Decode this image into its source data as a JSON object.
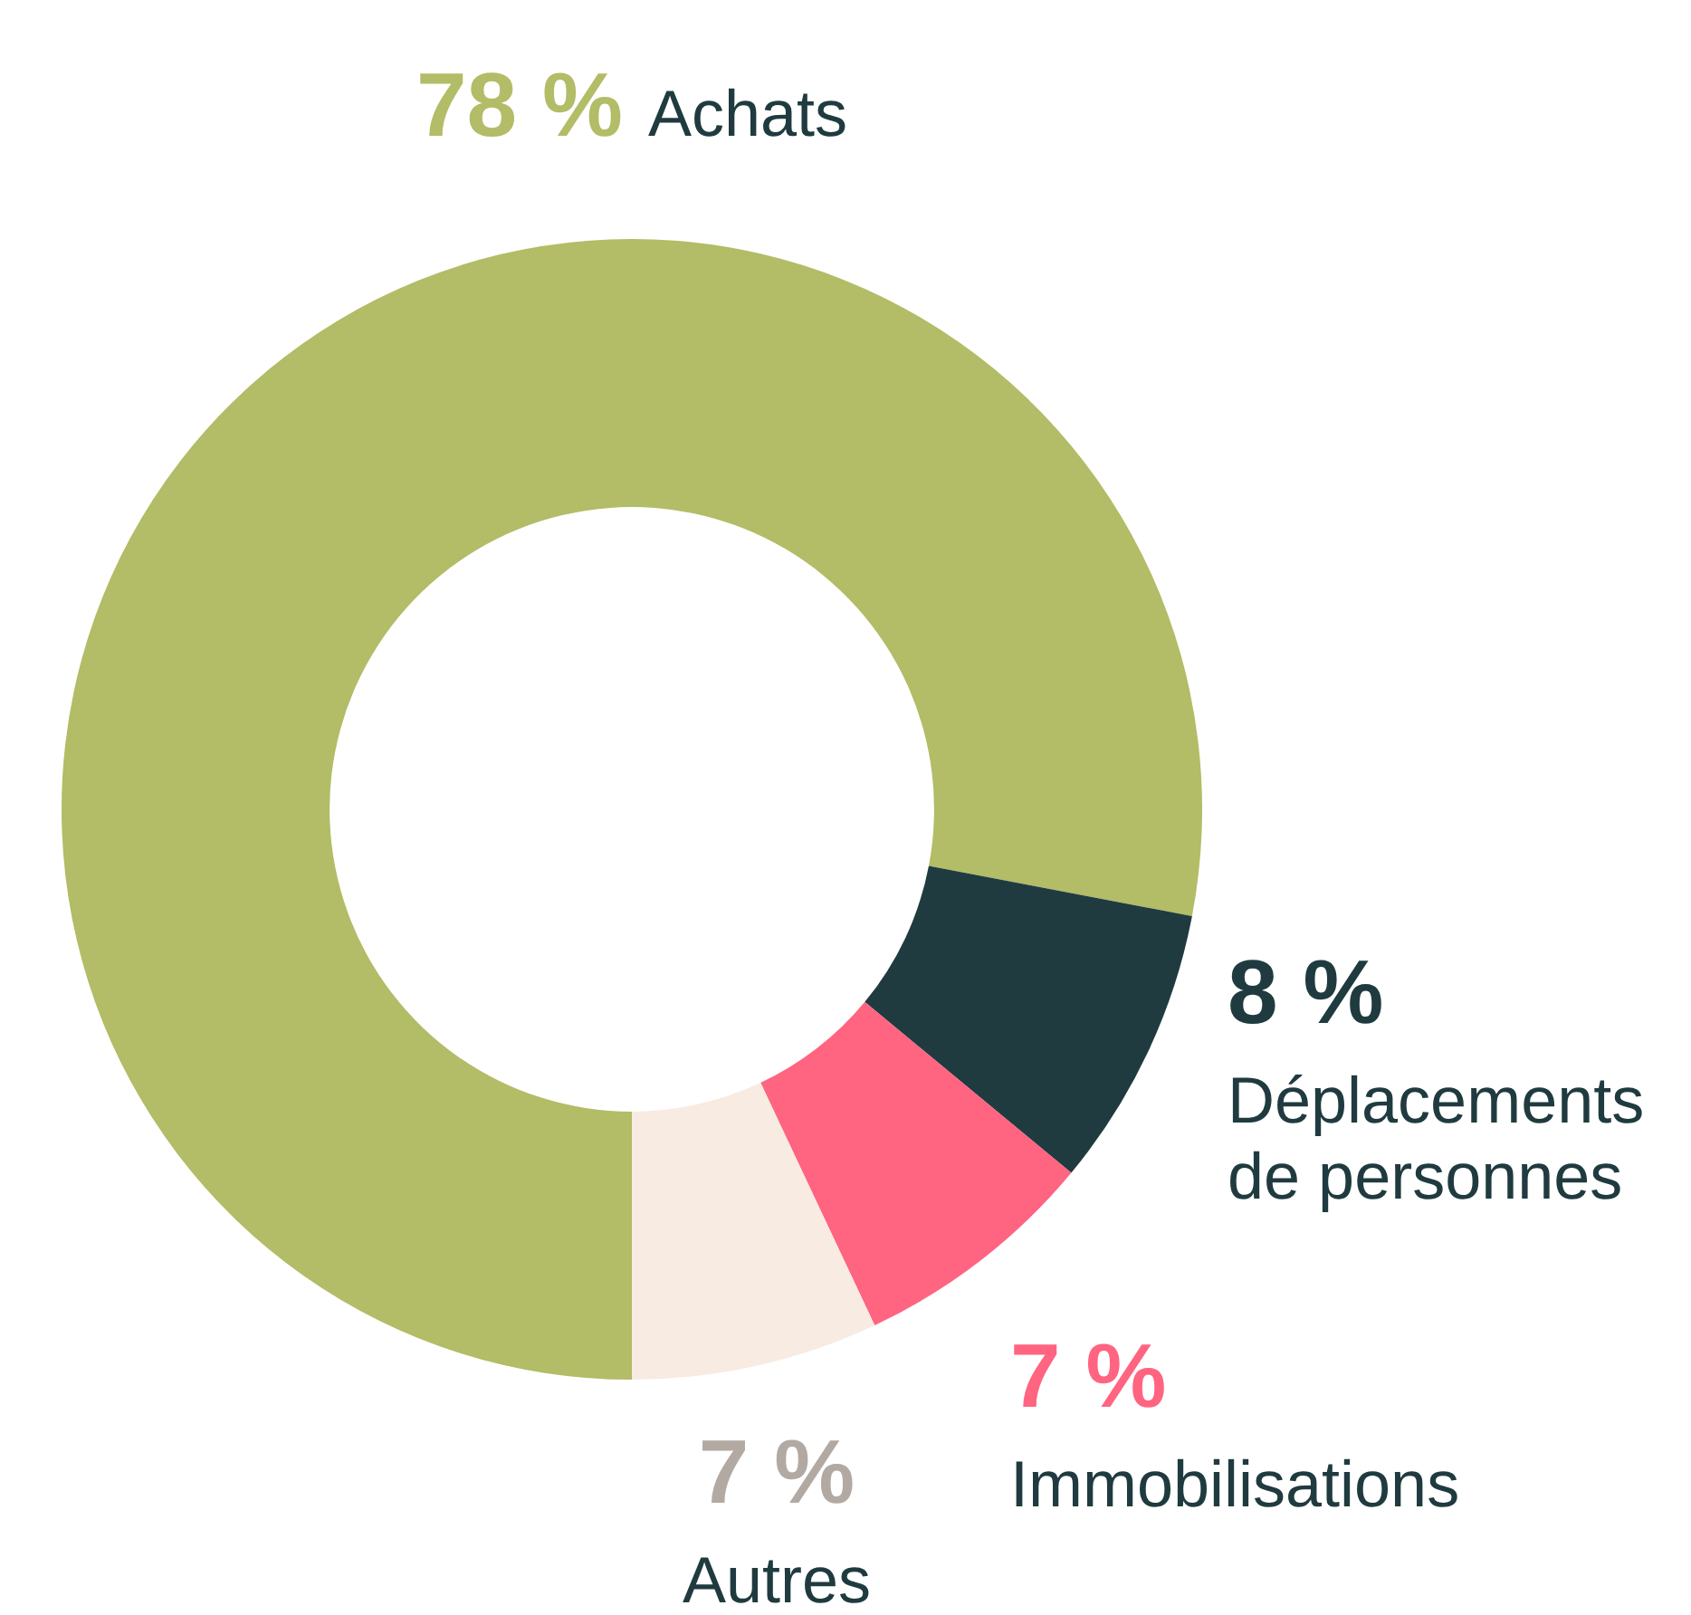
{
  "chart_data": {
    "type": "donut",
    "categories": [
      "Achats",
      "Déplacements de personnes",
      "Immobilisations",
      "Autres"
    ],
    "values": [
      78,
      8,
      7,
      7
    ],
    "colors": [
      "#b3bc66",
      "#203b40",
      "#ff6480",
      "#f7ebe2"
    ],
    "value_labels": [
      "78 %",
      "8 %",
      "7 %",
      "7 %"
    ],
    "legend": false
  }
}
